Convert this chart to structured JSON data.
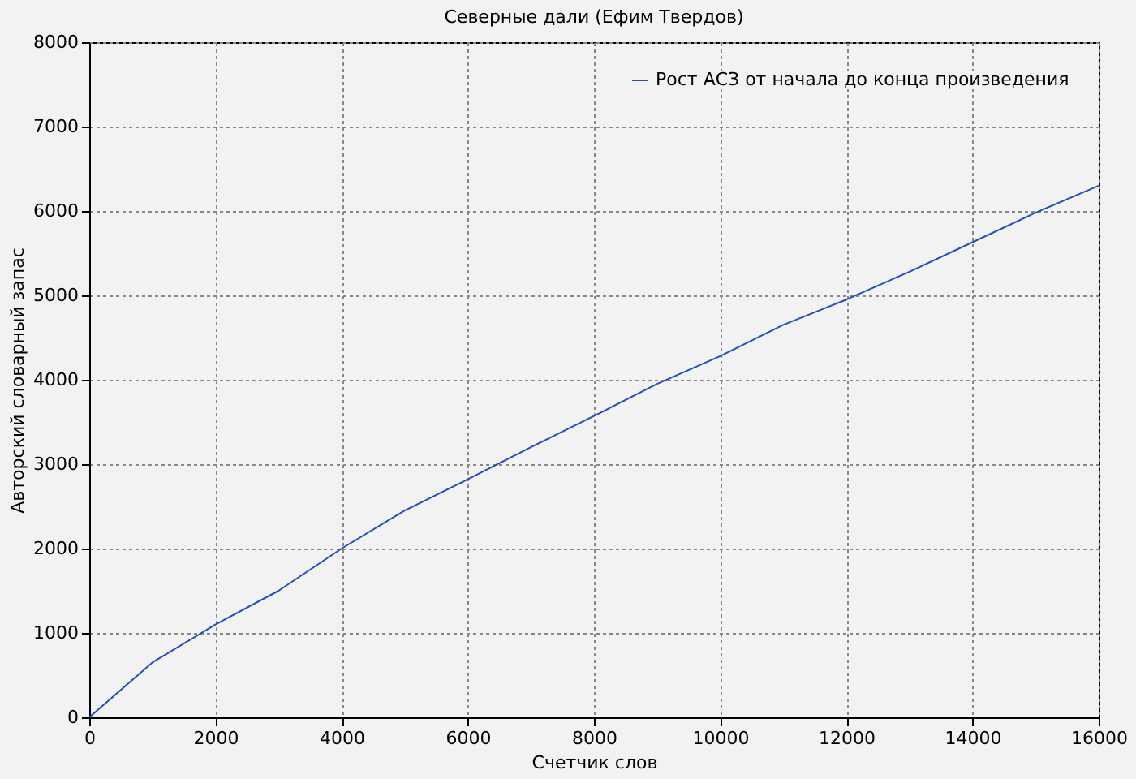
{
  "chart_data": {
    "type": "line",
    "title": "Северные дали (Ефим Твердов)",
    "xlabel": "Счетчик слов",
    "ylabel": "Авторский словарный запас",
    "x": [
      0,
      1000,
      2000,
      3000,
      4000,
      5000,
      6000,
      7000,
      8000,
      9000,
      10000,
      11000,
      12000,
      13000,
      14000,
      15000,
      16000
    ],
    "series": [
      {
        "name": "Рост АСЗ от начала до конца произведения",
        "color": "#1f4fbf",
        "values": [
          0,
          650,
          1100,
          1500,
          2000,
          2450,
          2820,
          3200,
          3570,
          3950,
          4280,
          4650,
          4950,
          5280,
          5630,
          5980,
          6300
        ]
      }
    ],
    "xlim": [
      0,
      16000
    ],
    "xticks": [
      0,
      2000,
      4000,
      6000,
      8000,
      10000,
      12000,
      14000,
      16000
    ],
    "ylim": [
      0,
      8000
    ],
    "yticks": [
      0,
      1000,
      2000,
      3000,
      4000,
      5000,
      6000,
      7000,
      8000
    ],
    "grid": true,
    "legend": "top right",
    "marker": "none",
    "line_style": "solid"
  }
}
